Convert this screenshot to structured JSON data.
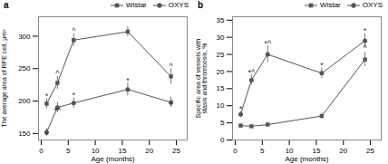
{
  "chart_data": [
    {
      "type": "line",
      "title": "a",
      "xlabel": "Age (months)",
      "ylabel": "The average area of RPE cell, μm²",
      "x": [
        1,
        3,
        6,
        16,
        24
      ],
      "series": [
        {
          "name": "Wistar",
          "color": "#555555",
          "marker": "square",
          "values": [
            196,
            228,
            294,
            307,
            238
          ],
          "yerr": [
            8,
            10,
            10,
            8,
            12
          ]
        },
        {
          "name": "OXYS",
          "color": "#555555",
          "marker": "circle",
          "values": [
            152,
            190,
            197,
            218,
            198
          ],
          "yerr": [
            6,
            8,
            8,
            10,
            8
          ]
        }
      ],
      "xlim": [
        -0.5,
        27
      ],
      "xticks": [
        0,
        5,
        10,
        15,
        20,
        25
      ],
      "ylim": [
        140,
        330
      ],
      "yticks": [
        150,
        200,
        250,
        300
      ],
      "legend": "upper right",
      "annotations": [
        {
          "x": 1,
          "y": 204,
          "text": "*"
        },
        {
          "x": 3,
          "y": 238,
          "text": "^"
        },
        {
          "x": 6,
          "y": 304,
          "text": "^"
        },
        {
          "x": 24,
          "y": 250,
          "text": "^"
        },
        {
          "x": 1,
          "y": 143,
          "text": "*"
        },
        {
          "x": 3,
          "y": 181,
          "text": "*^"
        },
        {
          "x": 6,
          "y": 205,
          "text": "*"
        },
        {
          "x": 16,
          "y": 228,
          "text": "*"
        },
        {
          "x": 24,
          "y": 189,
          "text": "*"
        }
      ]
    },
    {
      "type": "line",
      "title": "b",
      "xlabel": "Age (months)",
      "ylabel": "Specific area of vessels with\nstasis and thrombosis, %",
      "x": [
        1,
        3,
        6,
        16,
        24
      ],
      "series": [
        {
          "name": "Wistar",
          "color": "#555555",
          "marker": "square",
          "values": [
            4.2,
            4.0,
            4.5,
            7.0,
            23.5
          ],
          "yerr": [
            0.5,
            0.4,
            0.5,
            0.8,
            2.0
          ]
        },
        {
          "name": "OXYS",
          "color": "#555555",
          "marker": "circle",
          "values": [
            7.5,
            17.5,
            25.0,
            19.5,
            29.0
          ],
          "yerr": [
            0.8,
            1.5,
            2.5,
            1.5,
            2.0
          ]
        }
      ],
      "xlim": [
        -0.5,
        27
      ],
      "xticks": [
        0,
        5,
        10,
        15,
        20,
        25
      ],
      "ylim": [
        0,
        36
      ],
      "yticks": [
        0,
        5,
        10,
        15,
        20,
        25,
        30,
        35
      ],
      "legend": "upper right",
      "annotations": [
        {
          "x": 24,
          "y": 26.0,
          "text": "^"
        },
        {
          "x": 1,
          "y": 8.3,
          "text": "*"
        },
        {
          "x": 3,
          "y": 19.0,
          "text": "*^"
        },
        {
          "x": 6,
          "y": 27.5,
          "text": "*^"
        },
        {
          "x": 16,
          "y": 21.0,
          "text": "*"
        },
        {
          "x": 24,
          "y": 31.0,
          "text": "*"
        }
      ]
    }
  ]
}
